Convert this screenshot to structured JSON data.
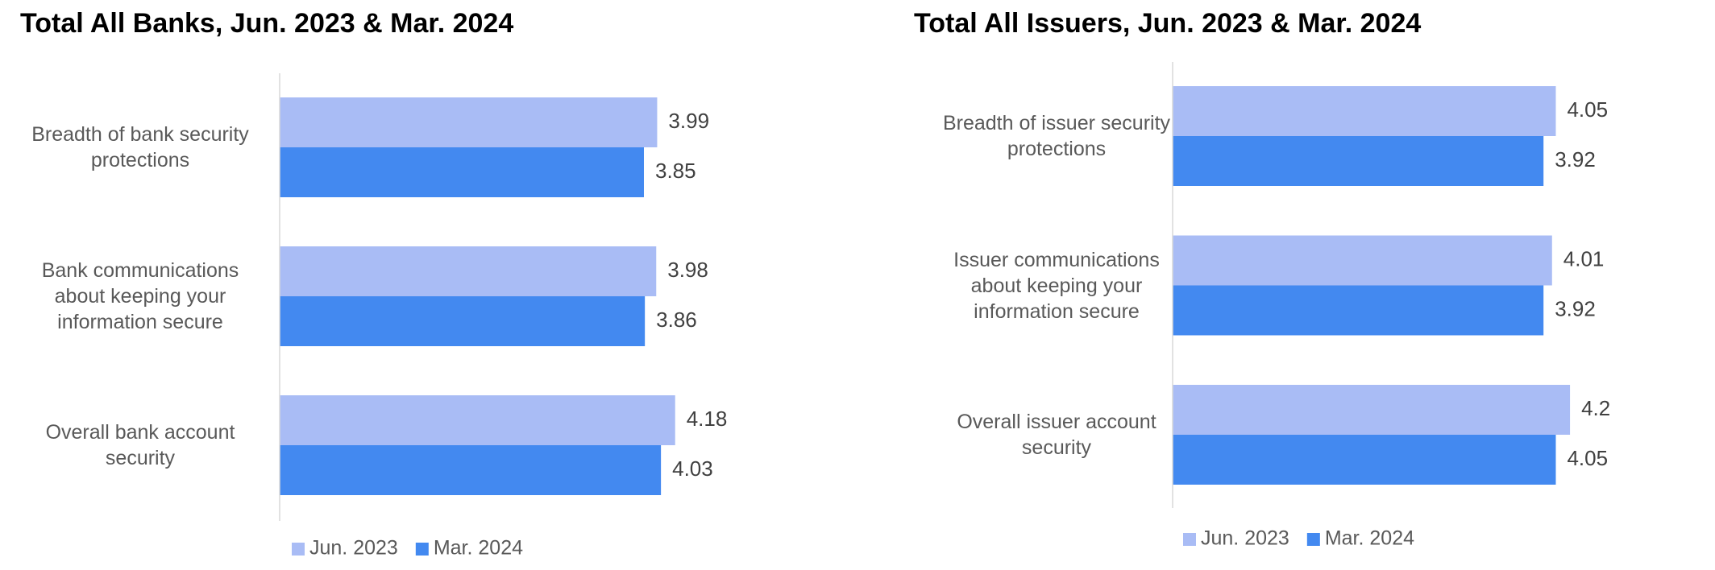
{
  "chart_data": [
    {
      "type": "bar",
      "orientation": "horizontal",
      "title": "Total All Banks, Jun. 2023 & Mar. 2024",
      "categories": [
        "Breadth of bank security protections",
        "Bank communications about keeping your information secure",
        "Overall bank account security"
      ],
      "series": [
        {
          "name": "Jun. 2023",
          "color": "#a9bcf5",
          "values": [
            3.99,
            3.98,
            4.18
          ]
        },
        {
          "name": "Mar. 2024",
          "color": "#4389f0",
          "values": [
            3.85,
            3.86,
            4.03
          ]
        }
      ],
      "xlim": [
        0,
        5
      ]
    },
    {
      "type": "bar",
      "orientation": "horizontal",
      "title": "Total All Issuers, Jun. 2023 & Mar. 2024",
      "categories": [
        "Breadth of issuer security protections",
        "Issuer communications about keeping your information secure",
        "Overall issuer account security"
      ],
      "series": [
        {
          "name": "Jun. 2023",
          "color": "#a9bcf5",
          "values": [
            4.05,
            4.01,
            4.2
          ]
        },
        {
          "name": "Mar. 2024",
          "color": "#4389f0",
          "values": [
            3.92,
            3.92,
            4.05
          ]
        }
      ],
      "xlim": [
        0,
        5
      ]
    }
  ]
}
